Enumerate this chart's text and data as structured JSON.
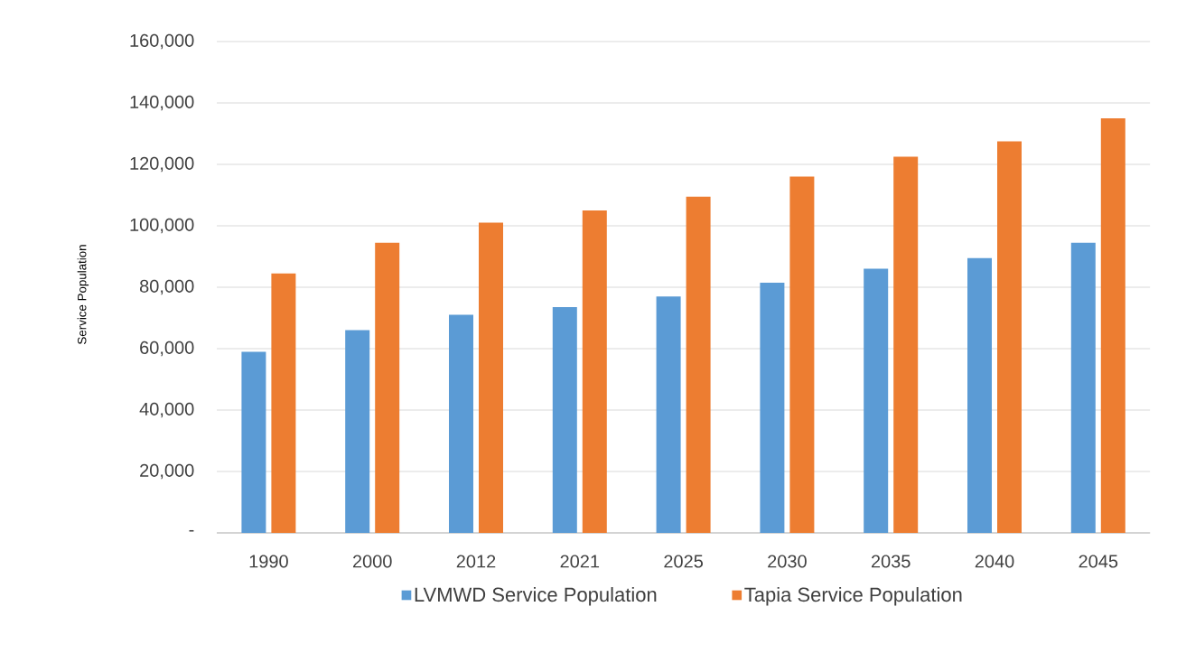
{
  "chart_data": {
    "type": "bar",
    "ylabel": "Service Population",
    "categories": [
      "1990",
      "2000",
      "2012",
      "2021",
      "2025",
      "2030",
      "2035",
      "2040",
      "2045"
    ],
    "series": [
      {
        "name": "LVMWD Service Population",
        "color": "#5b9bd5",
        "values": [
          59000,
          66000,
          71000,
          73500,
          77000,
          81500,
          86000,
          89500,
          94500
        ]
      },
      {
        "name": "Tapia Service Population",
        "color": "#ed7d31",
        "values": [
          84500,
          94500,
          101000,
          105000,
          109500,
          116000,
          122500,
          127500,
          135000
        ]
      }
    ],
    "ylim": [
      0,
      160000
    ],
    "yticks": [
      {
        "value": 0,
        "label": "-"
      },
      {
        "value": 20000,
        "label": "20,000"
      },
      {
        "value": 40000,
        "label": "40,000"
      },
      {
        "value": 60000,
        "label": "60,000"
      },
      {
        "value": 80000,
        "label": "80,000"
      },
      {
        "value": 100000,
        "label": "100,000"
      },
      {
        "value": 120000,
        "label": "120,000"
      },
      {
        "value": 140000,
        "label": "140,000"
      },
      {
        "value": 160000,
        "label": "160,000"
      }
    ],
    "grid": "y",
    "legend": "bottom"
  }
}
